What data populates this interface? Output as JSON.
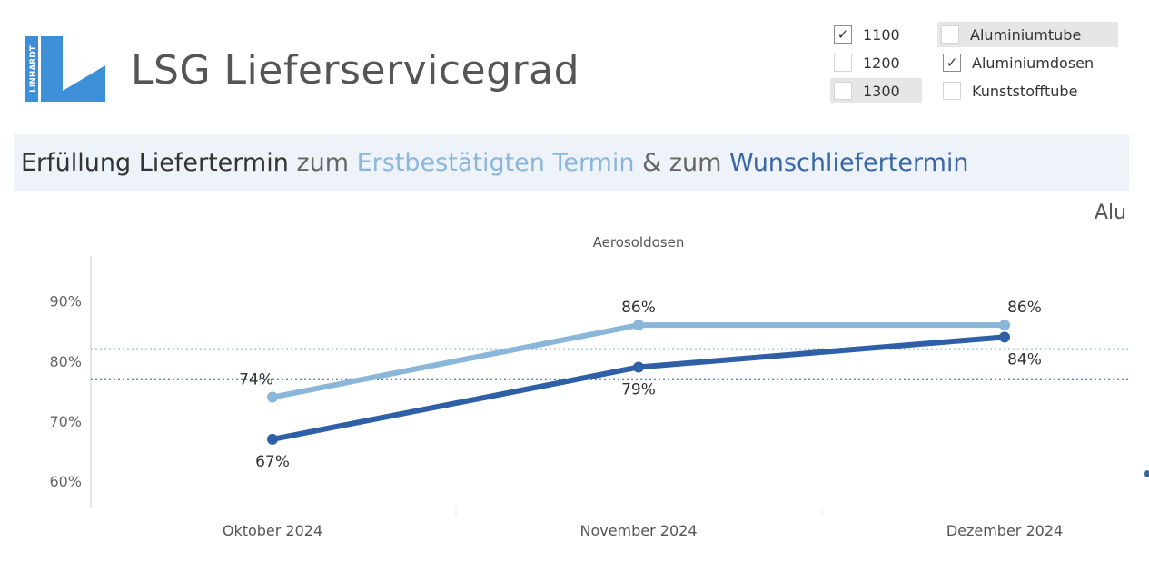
{
  "header": {
    "logo_text": "LINHARDT",
    "title": "LSG Lieferservicegrad"
  },
  "filters": {
    "plants": [
      {
        "label": "1100",
        "checked": true
      },
      {
        "label": "1200",
        "checked": false
      },
      {
        "label": "1300",
        "checked": false
      }
    ],
    "products": [
      {
        "label": "Aluminiumtube",
        "checked": false
      },
      {
        "label": "Aluminiumdosen",
        "checked": true
      },
      {
        "label": "Kunststofftube",
        "checked": false
      }
    ]
  },
  "banner": {
    "part1": "Erfüllung Liefertermin",
    "part2": " zum ",
    "part3": "Erstbestätigten Termin",
    "part4": " & zum ",
    "part5": "Wunschliefertermin"
  },
  "next_pane_label": "Alu",
  "colors": {
    "light_series": "#8ab7d9",
    "dark_series": "#2f5fa6",
    "axis": "#cccccc",
    "text": "#333333"
  },
  "chart_data": {
    "type": "line",
    "title": "Aerosoldosen",
    "categories": [
      "Oktober 2024",
      "November 2024",
      "Dezember 2024"
    ],
    "series": [
      {
        "name": "Erstbestätigten Termin",
        "values": [
          74,
          86,
          86
        ],
        "labels": [
          "74%",
          "86%",
          "86%"
        ],
        "color": "#8ab7d9"
      },
      {
        "name": "Wunschliefertermin",
        "values": [
          67,
          79,
          84
        ],
        "labels": [
          "67%",
          "79%",
          "84%"
        ],
        "color": "#2f5fa6"
      }
    ],
    "reference_lines": [
      {
        "series": "Erstbestätigten Termin",
        "value": 82,
        "color": "#8ab7d9"
      },
      {
        "series": "Wunschliefertermin",
        "value": 77,
        "color": "#2f5fa6"
      }
    ],
    "yticks": [
      60,
      70,
      80,
      90
    ],
    "ytick_labels": [
      "60%",
      "70%",
      "80%",
      "90%"
    ],
    "ylim": [
      55.5,
      97.5
    ],
    "xlabel": "",
    "ylabel": ""
  }
}
